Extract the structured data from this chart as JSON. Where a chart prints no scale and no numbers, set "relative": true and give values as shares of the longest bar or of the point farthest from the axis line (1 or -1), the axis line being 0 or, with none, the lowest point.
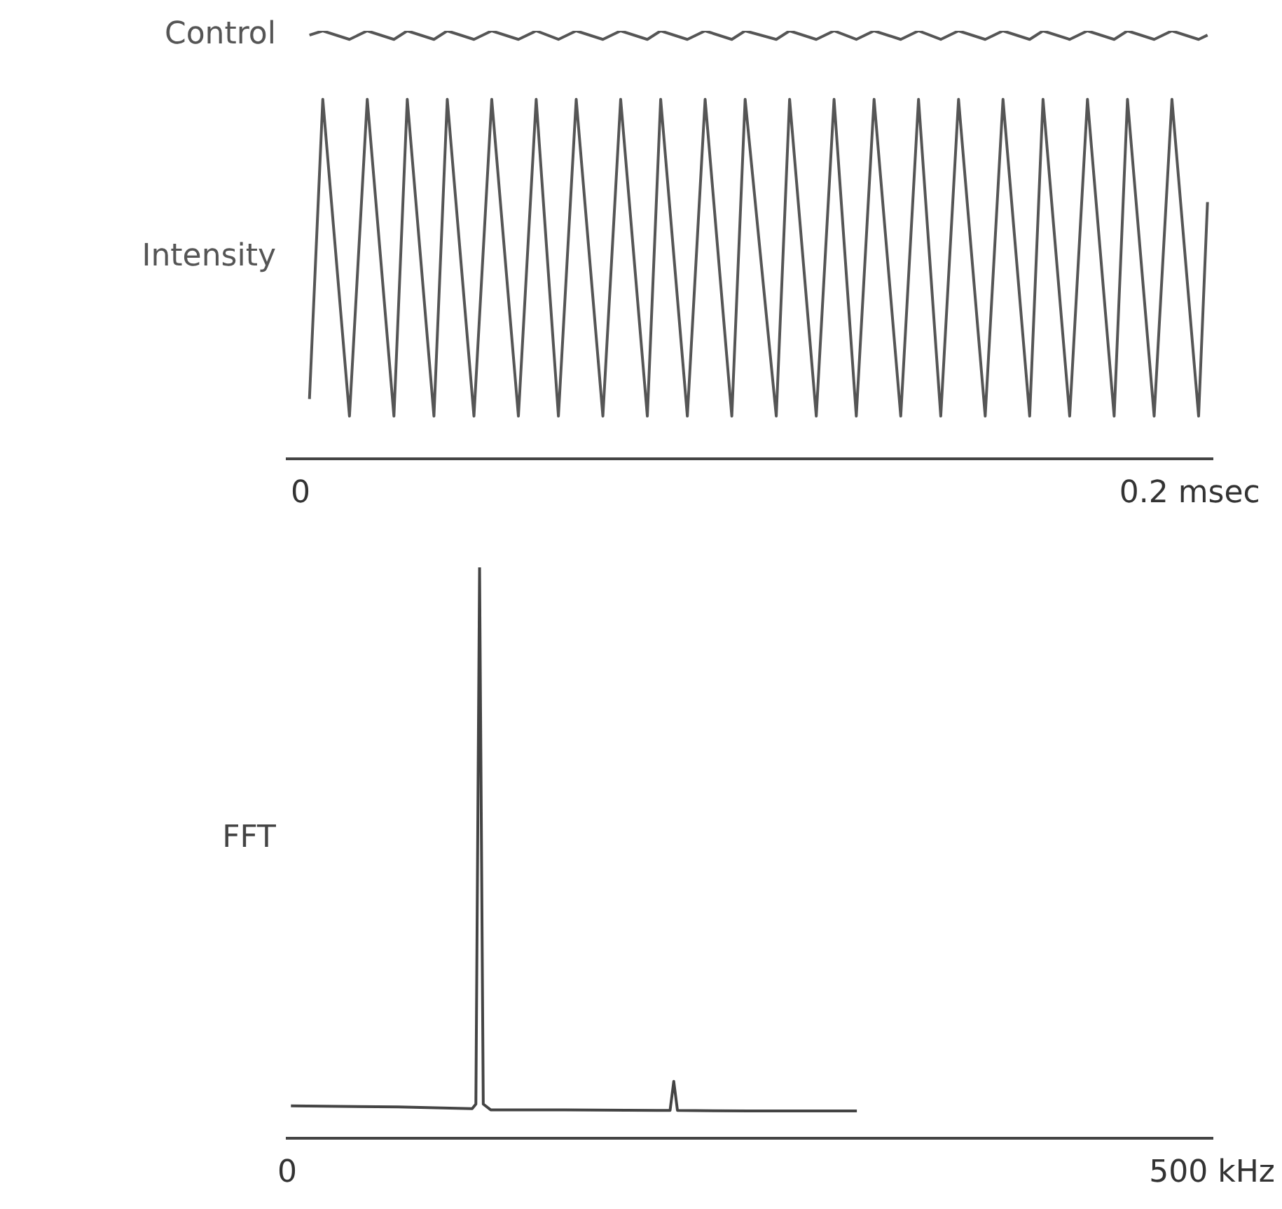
{
  "chart_data": [
    {
      "type": "line",
      "relative": true,
      "marker": "none",
      "line_style": "solid",
      "xlim": [
        -0.003,
        0.205
      ],
      "xticks": [
        0,
        {
          "value": 0.2,
          "label": "0.2 msec"
        }
      ],
      "series": [
        {
          "name": "Control",
          "color": "#555555",
          "x": [
            0.002,
            0.005,
            0.011,
            0.015,
            0.021,
            0.024,
            0.03,
            0.033,
            0.039,
            0.043,
            0.049,
            0.053,
            0.058,
            0.062,
            0.068,
            0.072,
            0.078,
            0.081,
            0.087,
            0.091,
            0.097,
            0.1,
            0.107,
            0.11,
            0.116,
            0.12,
            0.125,
            0.129,
            0.135,
            0.139,
            0.144,
            0.148,
            0.154,
            0.158,
            0.164,
            0.167,
            0.173,
            0.177,
            0.183,
            0.186,
            0.192,
            0.196,
            0.202,
            0.204
          ],
          "values": [
            0.99,
            1,
            0.98,
            1,
            0.98,
            1,
            0.98,
            1,
            0.98,
            1,
            0.98,
            1,
            0.98,
            1,
            0.98,
            1,
            0.98,
            1,
            0.98,
            1,
            0.98,
            1,
            0.98,
            1,
            0.98,
            1,
            0.98,
            1,
            0.98,
            1,
            0.98,
            1,
            0.98,
            1,
            0.98,
            1,
            0.98,
            1,
            0.98,
            1,
            0.98,
            1,
            0.98,
            0.99
          ]
        },
        {
          "name": "Intensity",
          "color": "#555555",
          "x": [
            0.002,
            0.005,
            0.011,
            0.015,
            0.021,
            0.024,
            0.03,
            0.033,
            0.039,
            0.043,
            0.049,
            0.053,
            0.058,
            0.062,
            0.068,
            0.072,
            0.078,
            0.081,
            0.087,
            0.091,
            0.097,
            0.1,
            0.107,
            0.11,
            0.116,
            0.12,
            0.125,
            0.129,
            0.135,
            0.139,
            0.144,
            0.148,
            0.154,
            0.158,
            0.164,
            0.167,
            0.173,
            0.177,
            0.183,
            0.186,
            0.192,
            0.196,
            0.202,
            0.204
          ],
          "values": [
            0.14,
            0.84,
            0.1,
            0.84,
            0.1,
            0.84,
            0.1,
            0.84,
            0.1,
            0.84,
            0.1,
            0.84,
            0.1,
            0.84,
            0.1,
            0.84,
            0.1,
            0.84,
            0.1,
            0.84,
            0.1,
            0.84,
            0.1,
            0.84,
            0.1,
            0.84,
            0.1,
            0.84,
            0.1,
            0.84,
            0.1,
            0.84,
            0.1,
            0.84,
            0.1,
            0.84,
            0.1,
            0.84,
            0.1,
            0.84,
            0.1,
            0.84,
            0.1,
            0.6
          ]
        }
      ]
    },
    {
      "type": "line",
      "relative": true,
      "marker": "none",
      "line_style": "solid",
      "xlim": [
        0,
        500
      ],
      "xticks": [
        0,
        {
          "value": 500,
          "label": "500 kHz"
        }
      ],
      "series": [
        {
          "name": "FFT",
          "color": "#444444",
          "x": [
            2,
            60,
            100,
            102,
            104,
            106,
            110,
            150,
            200,
            207,
            209,
            211,
            250,
            308
          ],
          "values": [
            0.057,
            0.055,
            0.052,
            0.06,
            1,
            0.06,
            0.05,
            0.05,
            0.049,
            0.049,
            0.1,
            0.049,
            0.048,
            0.048
          ]
        }
      ]
    }
  ]
}
